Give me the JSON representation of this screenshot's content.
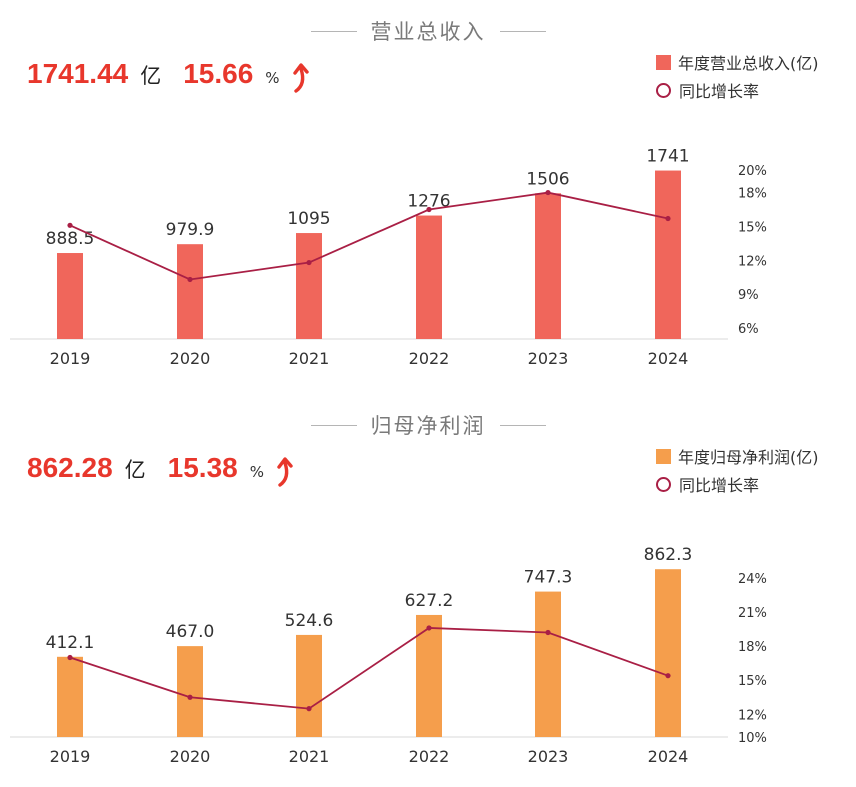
{
  "panels": [
    {
      "title": "营业总收入",
      "headline_value": "1741.44",
      "headline_unit": "亿",
      "headline_growth": "15.66",
      "headline_pct": "%",
      "bar_color": "#f0665b",
      "line_color": "#a91f45",
      "legend": [
        "年度营业总收入(亿)",
        "同比增长率"
      ]
    },
    {
      "title": "归母净利润",
      "headline_value": "862.28",
      "headline_unit": "亿",
      "headline_growth": "15.38",
      "headline_pct": "%",
      "bar_color": "#f59e4c",
      "line_color": "#a91f45",
      "legend": [
        "年度归母净利润(亿)",
        "同比增长率"
      ]
    }
  ],
  "chart_data": [
    {
      "type": "bar",
      "categories": [
        "2019",
        "2020",
        "2021",
        "2022",
        "2023",
        "2024"
      ],
      "series": [
        {
          "name": "年度营业总收入(亿)",
          "type": "bar",
          "values": [
            888.5,
            979.9,
            1095,
            1276,
            1506,
            1741
          ],
          "labels": [
            "888.5",
            "979.9",
            "1095",
            "1276",
            "1506",
            "1741"
          ]
        },
        {
          "name": "同比增长率",
          "type": "line",
          "axis": "right",
          "values": [
            15.1,
            10.3,
            11.8,
            16.5,
            18.0,
            15.7
          ]
        }
      ],
      "bar_ylim": [
        0,
        1850
      ],
      "right_axis": {
        "ticks": [
          6,
          9,
          12,
          15,
          18,
          20
        ],
        "labels": [
          "6%",
          "9%",
          "12%",
          "15%",
          "18%",
          "20%"
        ],
        "ylim": [
          6,
          20
        ]
      }
    },
    {
      "type": "bar",
      "categories": [
        "2019",
        "2020",
        "2021",
        "2022",
        "2023",
        "2024"
      ],
      "series": [
        {
          "name": "年度归母净利润(亿)",
          "type": "bar",
          "values": [
            412.1,
            467.0,
            524.6,
            627.2,
            747.3,
            862.3
          ],
          "labels": [
            "412.1",
            "467.0",
            "524.6",
            "627.2",
            "747.3",
            "862.3"
          ]
        },
        {
          "name": "同比增长率",
          "type": "line",
          "axis": "right",
          "values": [
            17.0,
            13.5,
            12.5,
            19.6,
            19.2,
            15.4
          ]
        }
      ],
      "bar_ylim": [
        0,
        925
      ],
      "right_axis": {
        "ticks": [
          10,
          12,
          15,
          18,
          21,
          24
        ],
        "labels": [
          "10%",
          "12%",
          "15%",
          "18%",
          "21%",
          "24%"
        ],
        "ylim": [
          10,
          24
        ]
      }
    }
  ]
}
